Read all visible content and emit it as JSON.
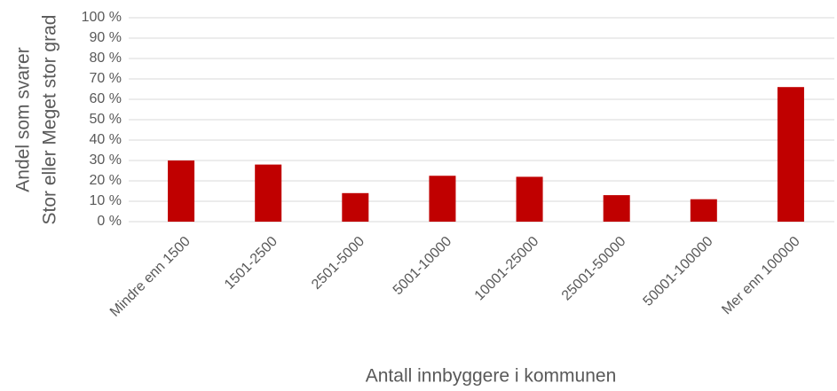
{
  "chart_data": {
    "type": "bar",
    "y_label": [
      "Andel som svarer",
      "Stor eller Meget stor grad"
    ],
    "x_label": "Antall innbyggere i kommunen",
    "categories": [
      "Mindre enn 1500",
      "1501-2500",
      "2501-5000",
      "5001-10000",
      "10001-25000",
      "25001-50000",
      "50001-100000",
      "Mer enn 100000"
    ],
    "values": [
      30,
      28,
      14,
      22.5,
      22,
      13,
      11,
      66
    ],
    "color": "#c00000",
    "ylim": [
      0,
      100
    ],
    "yticks": [
      {
        "value": 0,
        "label": "0 %"
      },
      {
        "value": 10,
        "label": "10 %"
      },
      {
        "value": 20,
        "label": "20 %"
      },
      {
        "value": 30,
        "label": "30 %"
      },
      {
        "value": 40,
        "label": "40 %"
      },
      {
        "value": 50,
        "label": "50 %"
      },
      {
        "value": 60,
        "label": "60 %"
      },
      {
        "value": 70,
        "label": "70 %"
      },
      {
        "value": 80,
        "label": "80 %"
      },
      {
        "value": 90,
        "label": "90 %"
      },
      {
        "value": 100,
        "label": "100 %"
      }
    ],
    "grid": true
  }
}
